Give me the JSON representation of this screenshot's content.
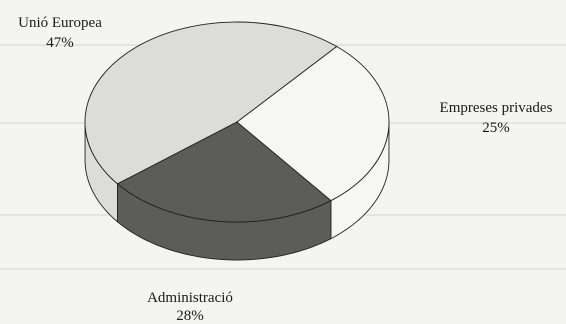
{
  "chart_data": {
    "type": "pie",
    "title": "",
    "style": "3d",
    "categories": [
      "Unió Europea",
      "Empreses privades",
      "Administració"
    ],
    "values": [
      47,
      25,
      28
    ],
    "value_labels": [
      "47%",
      "25%",
      "28%"
    ],
    "colors": [
      "#dcdcd8",
      "#5c5c5a",
      "#f6f6f3"
    ],
    "legend": "none"
  }
}
